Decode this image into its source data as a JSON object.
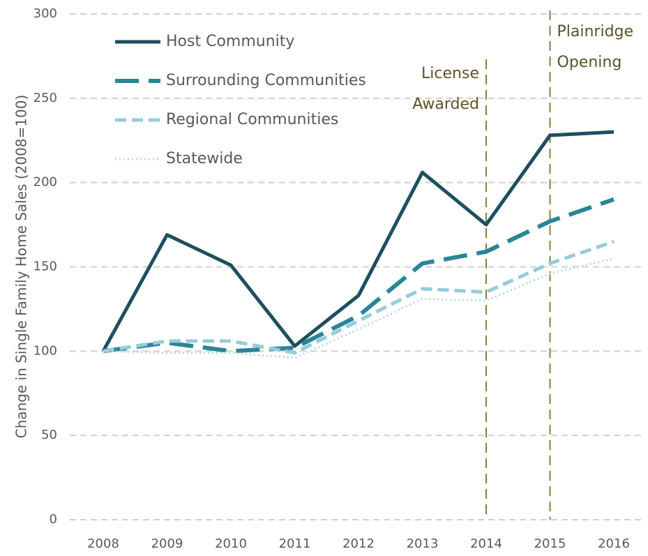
{
  "chart_data": {
    "type": "line",
    "ylabel": "Change in Single Family Home Sales (2008=100)",
    "categories": [
      "2008",
      "2009",
      "2010",
      "2011",
      "2012",
      "2013",
      "2014",
      "2015",
      "2016"
    ],
    "series": [
      {
        "name": "Host Community",
        "color": "#1d4f5e",
        "dash": "solid",
        "values": [
          100,
          169,
          151,
          103,
          133,
          206,
          175,
          228,
          230
        ]
      },
      {
        "name": "Surrounding Communities",
        "color": "#2a8598",
        "dash": "long",
        "values": [
          100,
          105,
          100,
          102,
          121,
          152,
          159,
          177,
          190
        ]
      },
      {
        "name": "Regional Communities",
        "color": "#96cbd8",
        "dash": "short",
        "values": [
          100,
          106,
          106,
          99,
          118,
          137,
          135,
          152,
          165
        ]
      },
      {
        "name": "Statewide",
        "color": "#b3dbe5",
        "dash": "dotted",
        "values": [
          100,
          99,
          99,
          96,
          113,
          131,
          130,
          146,
          155
        ]
      }
    ],
    "ylim": [
      0,
      300
    ],
    "yticks": [
      0,
      50,
      100,
      150,
      200,
      250,
      300
    ],
    "grid": true,
    "legend": "top-left",
    "annotations": [
      {
        "x": "2014",
        "lines": [
          "License",
          "Awarded"
        ]
      },
      {
        "x": "2015",
        "lines": [
          "Plainridge",
          "Opening"
        ]
      }
    ]
  }
}
